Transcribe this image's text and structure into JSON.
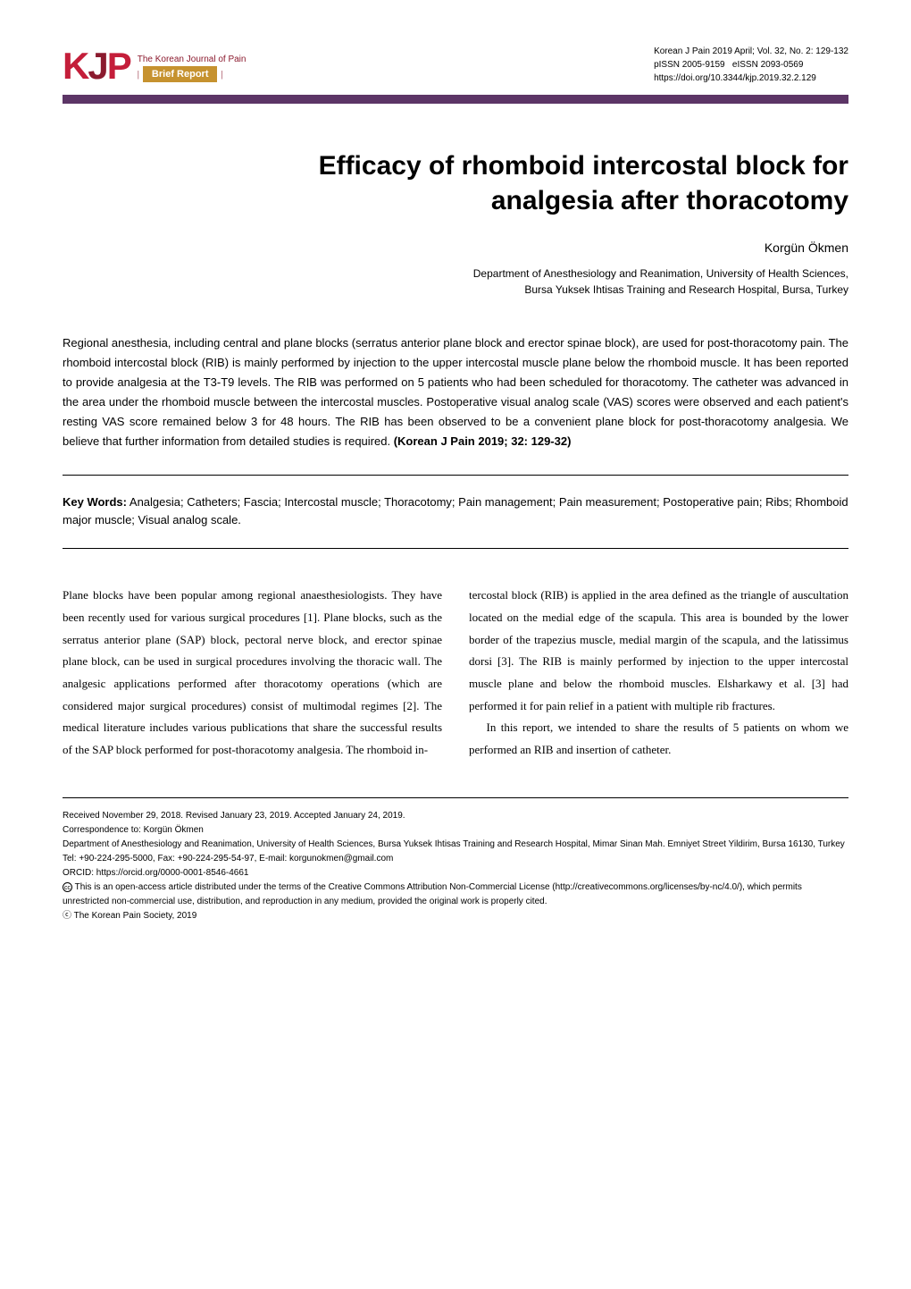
{
  "header": {
    "logo_k": "K",
    "logo_j": "J",
    "logo_p": "P",
    "journal_name": "The Korean Journal of Pain",
    "brief_report_pipe": "|",
    "brief_report_label": "Brief Report",
    "citation": "Korean J Pain 2019 April; Vol. 32, No. 2: 129-132",
    "pissn": "pISSN 2005-9159",
    "eissn": "eISSN 2093-0569",
    "doi": "https://doi.org/10.3344/kjp.2019.32.2.129"
  },
  "article": {
    "title_line1": "Efficacy of rhomboid intercostal block for",
    "title_line2": "analgesia after thoracotomy",
    "author": "Korgün Ökmen",
    "affiliation_line1": "Department of Anesthesiology and Reanimation, University of Health Sciences,",
    "affiliation_line2": "Bursa Yuksek Ihtisas Training and Research Hospital, Bursa, Turkey"
  },
  "abstract": {
    "text": "Regional anesthesia, including central and plane blocks (serratus anterior plane block and erector spinae block), are used for post-thoracotomy pain. The rhomboid intercostal block (RIB) is mainly performed by injection to the upper intercostal muscle plane below the rhomboid muscle. It has been reported to provide analgesia at the T3-T9 levels. The RIB was performed on 5 patients who had been scheduled for thoracotomy. The catheter was advanced in the area under the rhomboid muscle between the intercostal muscles. Postoperative visual analog scale (VAS) scores were observed and each patient's resting VAS score remained below 3 for 48 hours. The RIB has been observed to be a convenient plane block for post-thoracotomy analgesia. We believe that further information from detailed studies is required.",
    "citation": "(Korean J Pain 2019; 32: 129-32)"
  },
  "keywords": {
    "label": "Key Words:",
    "text": "Analgesia; Catheters; Fascia; Intercostal muscle; Thoracotomy; Pain management; Pain measurement; Postoperative pain; Ribs; Rhomboid major muscle; Visual analog scale."
  },
  "body": {
    "col1_p1": "Plane blocks have been popular among regional anaesthesiologists. They have been recently used for various surgical procedures [1]. Plane blocks, such as the serratus anterior plane (SAP) block, pectoral nerve block, and erector spinae plane block, can be used in surgical procedures involving the thoracic wall. The analgesic applications performed after thoracotomy operations (which are considered major surgical procedures) consist of multimodal regimes [2]. The medical literature includes various publications that share the successful results of the SAP block performed for post-thoracotomy analgesia. The rhomboid in-",
    "col2_p1": "tercostal block (RIB) is applied in the area defined as the triangle of auscultation located on the medial edge of the scapula. This area is bounded by the lower border of the trapezius muscle, medial margin of the scapula, and the latissimus dorsi [3]. The RIB is mainly performed by injection to the upper intercostal muscle plane and below the rhomboid muscles. Elsharkawy et al. [3] had performed it for pain relief in a patient with multiple rib fractures.",
    "col2_p2": "In this report, we intended to share the results of 5 patients on whom we performed an RIB and insertion of catheter."
  },
  "footer": {
    "received": "Received November 29, 2018. Revised January 23, 2019. Accepted January 24, 2019.",
    "correspondence": "Correspondence to: Korgün Ökmen",
    "address": "Department of Anesthesiology and Reanimation, University of Health Sciences, Bursa Yuksek Ihtisas Training and Research Hospital, Mimar Sinan Mah. Emniyet Street Yildirim, Bursa 16130, Turkey",
    "contact": "Tel: +90-224-295-5000, Fax: +90-224-295-54-97, E-mail: korgunokmen@gmail.com",
    "orcid": "ORCID: https://orcid.org/0000-0001-8546-4661",
    "license": "This is an open-access article distributed under the terms of the Creative Commons Attribution Non-Commercial License (http://creativecommons.org/licenses/by-nc/4.0/), which permits unrestricted non-commercial use, distribution, and reproduction in any medium, provided the original work is properly cited.",
    "copyright": "ⓒ The Korean Pain Society, 2019"
  }
}
